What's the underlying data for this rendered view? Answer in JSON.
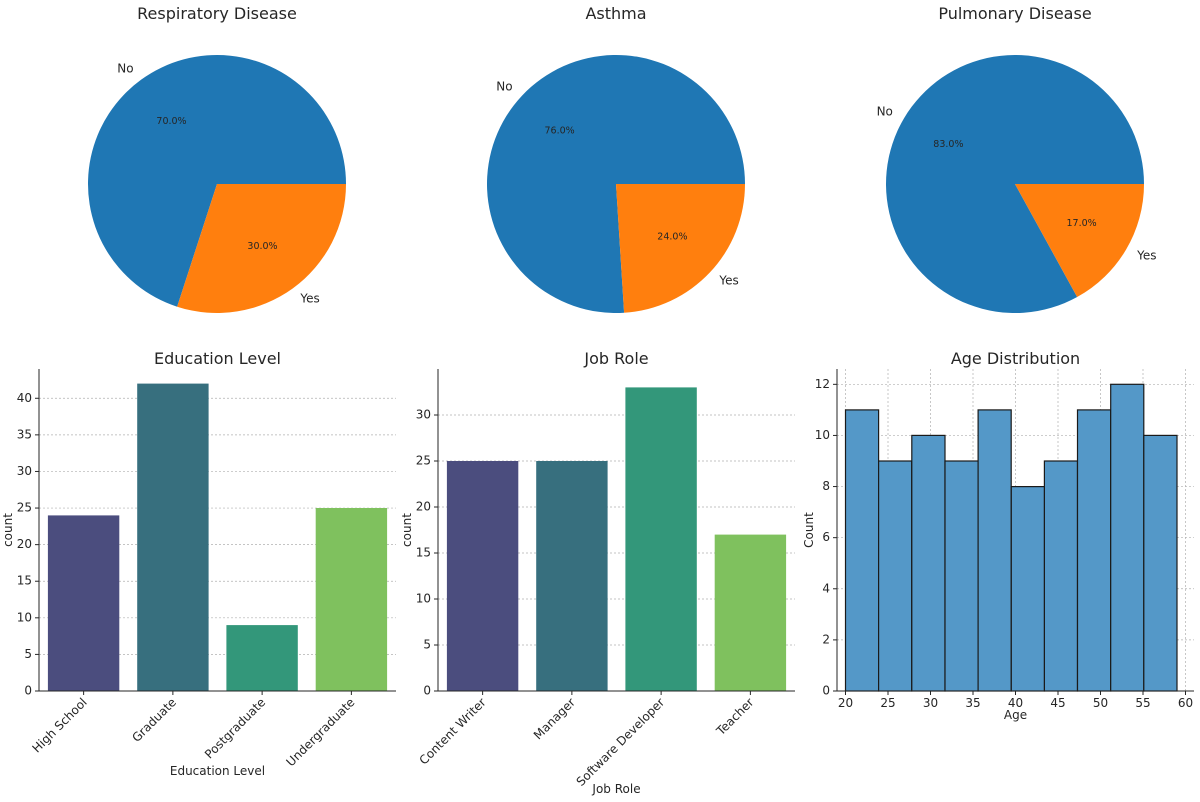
{
  "colors": {
    "pie_no": "#1f77b4",
    "pie_yes": "#ff7f0e",
    "viridis4": [
      "#4b4d7e",
      "#376f7e",
      "#33977a",
      "#7fc15e"
    ],
    "hist_fill": "#5498c8"
  },
  "chart_data": [
    {
      "id": "respiratory",
      "type": "pie",
      "title": "Respiratory Disease",
      "labels": [
        "No",
        "Yes"
      ],
      "values": [
        70.0,
        30.0
      ],
      "autopct": [
        "70.0%",
        "30.0%"
      ]
    },
    {
      "id": "asthma",
      "type": "pie",
      "title": "Asthma",
      "labels": [
        "No",
        "Yes"
      ],
      "values": [
        76.0,
        24.0
      ],
      "autopct": [
        "76.0%",
        "24.0%"
      ]
    },
    {
      "id": "pulmonary",
      "type": "pie",
      "title": "Pulmonary Disease",
      "labels": [
        "No",
        "Yes"
      ],
      "values": [
        83.0,
        17.0
      ],
      "autopct": [
        "83.0%",
        "17.0%"
      ]
    },
    {
      "id": "education",
      "type": "bar",
      "title": "Education Level",
      "categories": [
        "High School",
        "Graduate",
        "Postgraduate",
        "Undergraduate"
      ],
      "values": [
        24,
        42,
        9,
        25
      ],
      "xlabel": "Education Level",
      "ylabel": "count",
      "ylim": [
        0,
        44
      ],
      "yticks": [
        0,
        5,
        10,
        15,
        20,
        25,
        30,
        35,
        40
      ]
    },
    {
      "id": "jobrole",
      "type": "bar",
      "title": "Job Role",
      "categories": [
        "Content Writer",
        "Manager",
        "Software Developer",
        "Teacher"
      ],
      "values": [
        25,
        25,
        33,
        17
      ],
      "xlabel": "Job Role",
      "ylabel": "count",
      "ylim": [
        0,
        35
      ],
      "yticks": [
        0,
        5,
        10,
        15,
        20,
        25,
        30
      ]
    },
    {
      "id": "age",
      "type": "histogram",
      "title": "Age Distribution",
      "bin_edges": [
        20,
        23.9,
        27.8,
        31.7,
        35.6,
        39.5,
        43.4,
        47.3,
        51.2,
        55.1,
        59
      ],
      "counts": [
        11,
        9,
        10,
        9,
        11,
        8,
        9,
        11,
        12,
        10
      ],
      "xlabel": "Age",
      "ylabel": "Count",
      "xlim": [
        19,
        61
      ],
      "ylim": [
        0,
        12.6
      ],
      "xticks": [
        20,
        25,
        30,
        35,
        40,
        45,
        50,
        55,
        60
      ],
      "yticks": [
        0,
        2,
        4,
        6,
        8,
        10,
        12
      ]
    }
  ]
}
